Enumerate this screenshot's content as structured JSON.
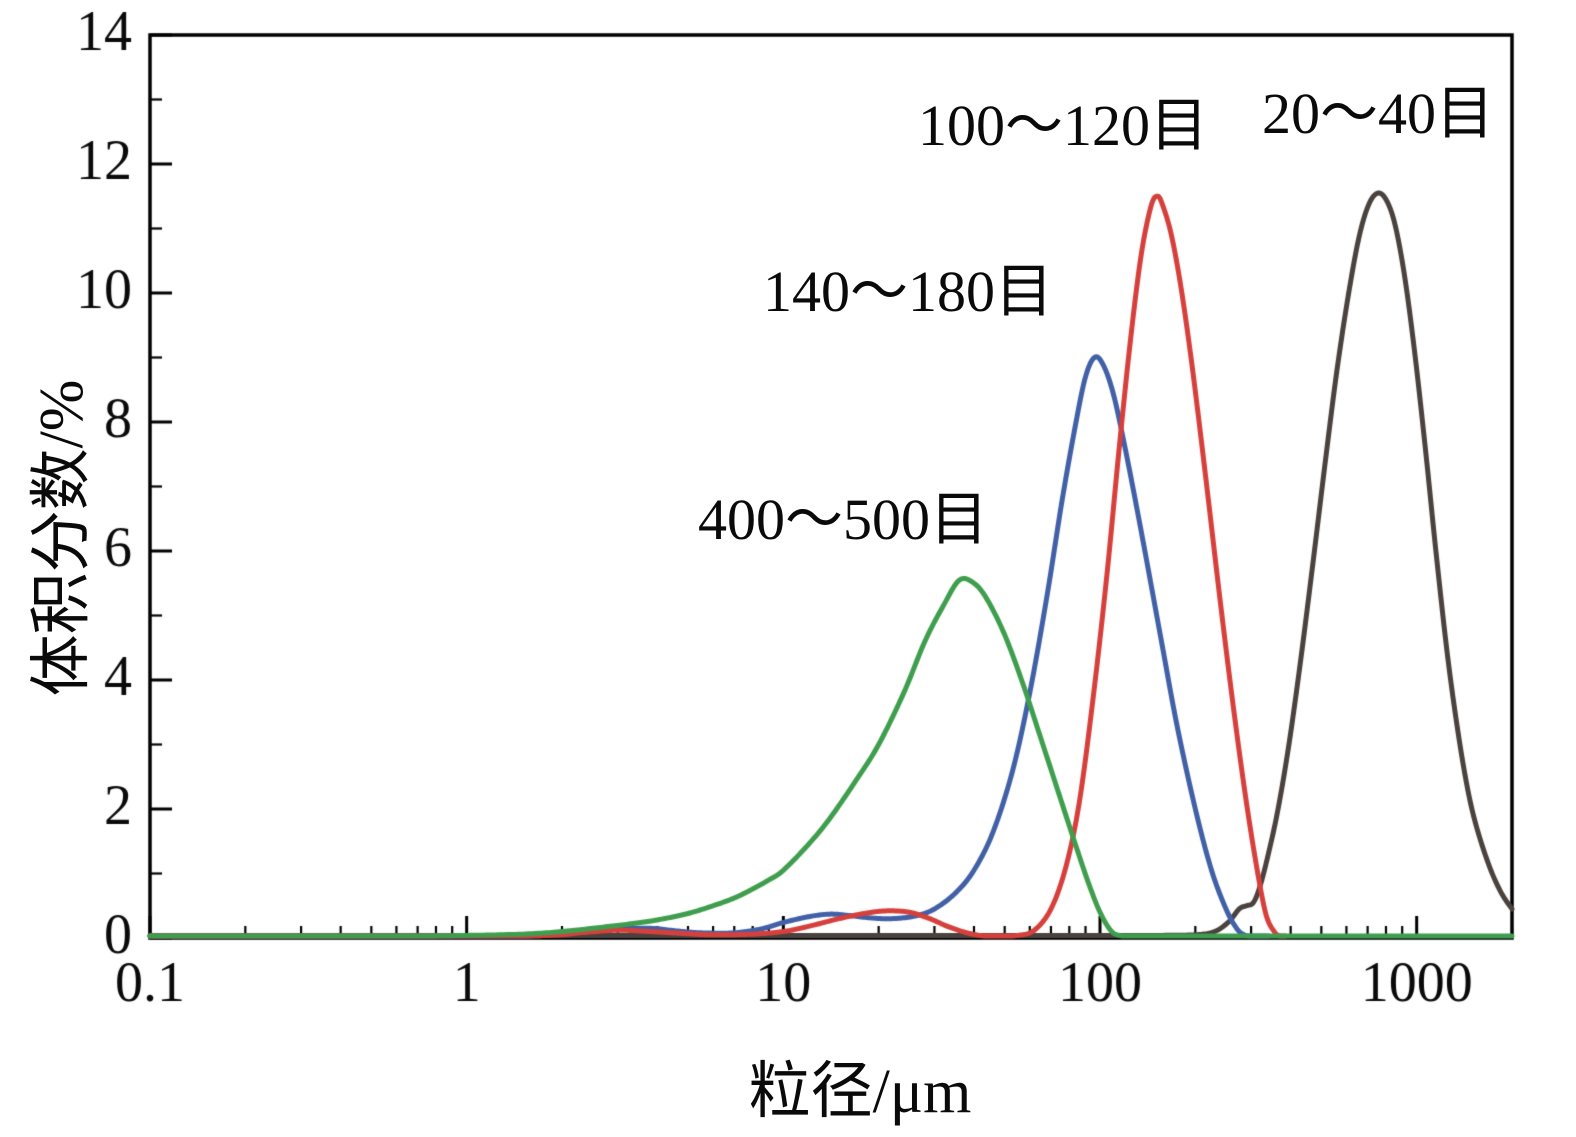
{
  "page": {
    "background": "#ffffff"
  },
  "chart_data": {
    "type": "line",
    "title": "",
    "xlabel": "粒径/μm",
    "ylabel": "体积分数/%",
    "x_scale": "log",
    "xlim": [
      0.1,
      2000
    ],
    "ylim": [
      0,
      14
    ],
    "grid": false,
    "legend_position": "inline-annotations",
    "axis_color": "#000000",
    "x_major_ticks": [
      0.1,
      1,
      10,
      100,
      1000
    ],
    "x_major_tick_labels": [
      "0.1",
      "1",
      "10",
      "100",
      "1000"
    ],
    "y_major_ticks": [
      0,
      2,
      4,
      6,
      8,
      10,
      12,
      14
    ],
    "y_major_tick_labels": [
      "0",
      "2",
      "4",
      "6",
      "8",
      "10",
      "12",
      "14"
    ],
    "y_minor_ticks": [
      1,
      3,
      5,
      7,
      9,
      11,
      13
    ],
    "series": [
      {
        "name": "20～40目",
        "color": "#4a423e",
        "peak": {
          "x": 760,
          "y": 11.55
        },
        "points": [
          [
            0.1,
            0.04
          ],
          [
            1,
            0.04
          ],
          [
            10,
            0.04
          ],
          [
            50,
            0.04
          ],
          [
            100,
            0.04
          ],
          [
            150,
            0.04
          ],
          [
            200,
            0.05
          ],
          [
            230,
            0.1
          ],
          [
            255,
            0.25
          ],
          [
            275,
            0.45
          ],
          [
            290,
            0.5
          ],
          [
            305,
            0.55
          ],
          [
            320,
            0.8
          ],
          [
            340,
            1.3
          ],
          [
            365,
            2.0
          ],
          [
            395,
            3.0
          ],
          [
            430,
            4.3
          ],
          [
            470,
            5.8
          ],
          [
            515,
            7.4
          ],
          [
            560,
            8.8
          ],
          [
            610,
            10.0
          ],
          [
            660,
            10.9
          ],
          [
            710,
            11.4
          ],
          [
            760,
            11.55
          ],
          [
            810,
            11.4
          ],
          [
            860,
            11.0
          ],
          [
            920,
            10.2
          ],
          [
            990,
            9.0
          ],
          [
            1070,
            7.5
          ],
          [
            1150,
            6.0
          ],
          [
            1250,
            4.4
          ],
          [
            1350,
            3.2
          ],
          [
            1450,
            2.3
          ],
          [
            1550,
            1.7
          ],
          [
            1700,
            1.1
          ],
          [
            1850,
            0.7
          ],
          [
            2000,
            0.45
          ]
        ]
      },
      {
        "name": "140～180目",
        "color": "#4160a6",
        "peak": {
          "x": 96,
          "y": 9.0
        },
        "points": [
          [
            0.1,
            0.02
          ],
          [
            0.5,
            0.02
          ],
          [
            1,
            0.02
          ],
          [
            1.6,
            0.03
          ],
          [
            2.2,
            0.08
          ],
          [
            3,
            0.14
          ],
          [
            3.8,
            0.15
          ],
          [
            4.6,
            0.11
          ],
          [
            5.5,
            0.08
          ],
          [
            7,
            0.08
          ],
          [
            8.5,
            0.14
          ],
          [
            10,
            0.24
          ],
          [
            12,
            0.33
          ],
          [
            14,
            0.37
          ],
          [
            16,
            0.35
          ],
          [
            19,
            0.31
          ],
          [
            22,
            0.3
          ],
          [
            26,
            0.34
          ],
          [
            30,
            0.45
          ],
          [
            35,
            0.7
          ],
          [
            40,
            1.05
          ],
          [
            46,
            1.65
          ],
          [
            53,
            2.6
          ],
          [
            60,
            3.8
          ],
          [
            68,
            5.3
          ],
          [
            76,
            6.8
          ],
          [
            84,
            8.0
          ],
          [
            90,
            8.7
          ],
          [
            96,
            9.0
          ],
          [
            102,
            8.9
          ],
          [
            110,
            8.45
          ],
          [
            120,
            7.6
          ],
          [
            135,
            6.3
          ],
          [
            155,
            4.7
          ],
          [
            175,
            3.3
          ],
          [
            200,
            2.0
          ],
          [
            225,
            1.05
          ],
          [
            250,
            0.45
          ],
          [
            270,
            0.15
          ],
          [
            285,
            0.05
          ],
          [
            300,
            0.02
          ],
          [
            340,
            0.02
          ]
        ]
      },
      {
        "name": "100～120目",
        "color": "#d6403c",
        "peak": {
          "x": 150,
          "y": 11.5
        },
        "points": [
          [
            0.1,
            0.02
          ],
          [
            1,
            0.02
          ],
          [
            1.8,
            0.04
          ],
          [
            2.4,
            0.09
          ],
          [
            3,
            0.12
          ],
          [
            3.8,
            0.1
          ],
          [
            4.8,
            0.07
          ],
          [
            6,
            0.05
          ],
          [
            8,
            0.06
          ],
          [
            10,
            0.1
          ],
          [
            12,
            0.18
          ],
          [
            15,
            0.3
          ],
          [
            18,
            0.38
          ],
          [
            21,
            0.42
          ],
          [
            25,
            0.4
          ],
          [
            29,
            0.3
          ],
          [
            33,
            0.18
          ],
          [
            38,
            0.08
          ],
          [
            43,
            0.03
          ],
          [
            48,
            0.02
          ],
          [
            55,
            0.04
          ],
          [
            62,
            0.12
          ],
          [
            70,
            0.45
          ],
          [
            78,
            1.1
          ],
          [
            86,
            2.1
          ],
          [
            95,
            3.7
          ],
          [
            105,
            5.6
          ],
          [
            115,
            7.6
          ],
          [
            125,
            9.3
          ],
          [
            135,
            10.6
          ],
          [
            145,
            11.35
          ],
          [
            152,
            11.5
          ],
          [
            158,
            11.35
          ],
          [
            168,
            10.9
          ],
          [
            180,
            10.1
          ],
          [
            195,
            8.9
          ],
          [
            215,
            7.2
          ],
          [
            240,
            5.2
          ],
          [
            265,
            3.5
          ],
          [
            290,
            2.1
          ],
          [
            315,
            1.0
          ],
          [
            335,
            0.35
          ],
          [
            355,
            0.1
          ],
          [
            370,
            0.03
          ],
          [
            385,
            0.02
          ]
        ]
      },
      {
        "name": "400～500目",
        "color": "#3f9e4e",
        "peak": {
          "x": 36,
          "y": 5.55
        },
        "points": [
          [
            0.1,
            0.03
          ],
          [
            0.2,
            0.03
          ],
          [
            0.4,
            0.03
          ],
          [
            0.7,
            0.03
          ],
          [
            1,
            0.04
          ],
          [
            1.5,
            0.06
          ],
          [
            2,
            0.1
          ],
          [
            2.6,
            0.16
          ],
          [
            3.3,
            0.22
          ],
          [
            4,
            0.28
          ],
          [
            5,
            0.38
          ],
          [
            6,
            0.5
          ],
          [
            7,
            0.62
          ],
          [
            8,
            0.76
          ],
          [
            9,
            0.9
          ],
          [
            10,
            1.05
          ],
          [
            12,
            1.45
          ],
          [
            14,
            1.85
          ],
          [
            17,
            2.45
          ],
          [
            20,
            3.0
          ],
          [
            24,
            3.8
          ],
          [
            28,
            4.6
          ],
          [
            32,
            5.15
          ],
          [
            36,
            5.55
          ],
          [
            40,
            5.5
          ],
          [
            44,
            5.25
          ],
          [
            50,
            4.7
          ],
          [
            57,
            3.95
          ],
          [
            65,
            3.1
          ],
          [
            74,
            2.25
          ],
          [
            83,
            1.5
          ],
          [
            92,
            0.85
          ],
          [
            100,
            0.4
          ],
          [
            108,
            0.12
          ],
          [
            115,
            0.04
          ],
          [
            125,
            0.03
          ],
          [
            150,
            0.03
          ],
          [
            300,
            0.03
          ],
          [
            700,
            0.03
          ],
          [
            1500,
            0.03
          ],
          [
            2000,
            0.03
          ]
        ]
      }
    ],
    "annotations": [
      {
        "text": "100～120目",
        "series": "100～120目"
      },
      {
        "text": "20～40目",
        "series": "20～40目"
      },
      {
        "text": "140～180目",
        "series": "140～180目"
      },
      {
        "text": "400～500目",
        "series": "400～500目"
      }
    ]
  }
}
